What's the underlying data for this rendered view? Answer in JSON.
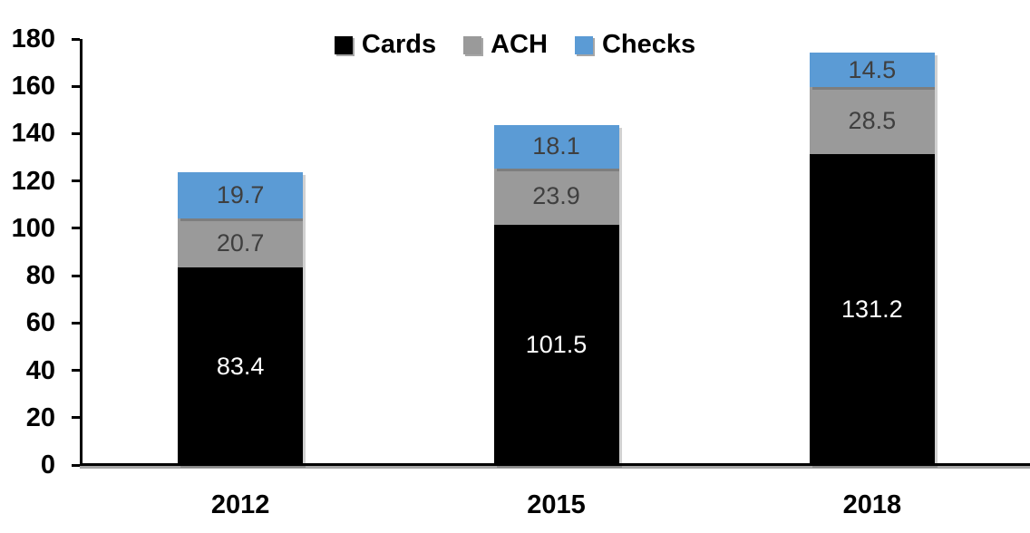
{
  "chart_data": {
    "type": "bar",
    "stacked": true,
    "title": "",
    "xlabel": "",
    "ylabel": "",
    "categories": [
      "2012",
      "2015",
      "2018"
    ],
    "series": [
      {
        "name": "Cards",
        "color": "#000000",
        "label_color": "#ffffff",
        "values": [
          83.4,
          101.5,
          131.2
        ]
      },
      {
        "name": "ACH",
        "color": "#9A9A9A",
        "label_color": "#3F3F3F",
        "values": [
          20.7,
          23.9,
          28.5
        ]
      },
      {
        "name": "Checks",
        "color": "#5B9BD5",
        "label_color": "#3F3F3F",
        "values": [
          19.7,
          18.1,
          14.5
        ]
      }
    ],
    "ylim": [
      0,
      180
    ],
    "yticks": [
      0,
      20,
      40,
      60,
      80,
      100,
      120,
      140,
      160,
      180
    ],
    "grid": false,
    "legend_position": "top",
    "value_label_decimals": 1
  }
}
